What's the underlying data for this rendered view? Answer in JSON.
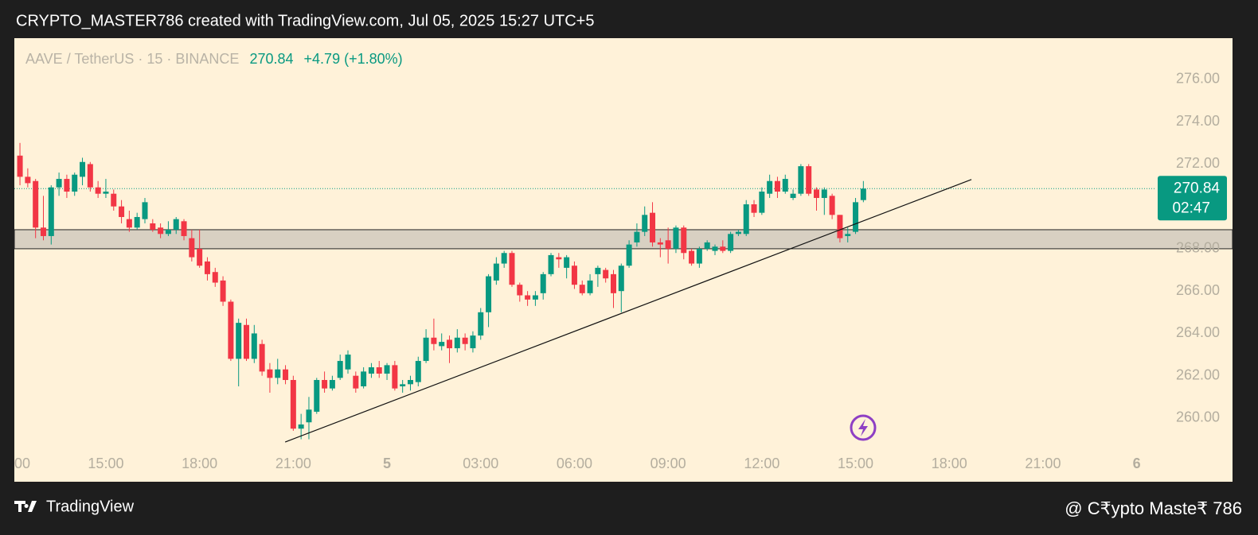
{
  "header": {
    "text": "CRYPTO_MASTER786 created with TradingView.com, Jul 05, 2025 15:27 UTC+5"
  },
  "chart_data": {
    "type": "candlestick",
    "symbol": "AAVE / TetherUS · 15 · BINANCE",
    "last": 270.84,
    "change": "+4.79 (+1.80%)",
    "countdown": "02:47",
    "up_color": "#089981",
    "down_color": "#f23645",
    "xlim": [
      12.07,
      48.57
    ],
    "ylim": [
      258.42,
      277.95
    ],
    "xticks": [
      {
        "value": 12,
        "label": "00"
      },
      {
        "value": 15,
        "label": "15:00"
      },
      {
        "value": 18,
        "label": "18:00"
      },
      {
        "value": 21,
        "label": "21:00"
      },
      {
        "value": 24,
        "label": "5"
      },
      {
        "value": 27,
        "label": "03:00"
      },
      {
        "value": 30,
        "label": "06:00"
      },
      {
        "value": 33,
        "label": "09:00"
      },
      {
        "value": 36,
        "label": "12:00"
      },
      {
        "value": 39,
        "label": "15:00"
      },
      {
        "value": 42,
        "label": "18:00"
      },
      {
        "value": 45,
        "label": "21:00"
      },
      {
        "value": 48,
        "label": "6"
      }
    ],
    "yticks": [
      {
        "value": 260,
        "label": "260.00"
      },
      {
        "value": 262,
        "label": "262.00"
      },
      {
        "value": 264,
        "label": "264.00"
      },
      {
        "value": 266,
        "label": "266.00"
      },
      {
        "value": 268,
        "label": "268.00"
      },
      {
        "value": 270,
        "label": "270.00"
      },
      {
        "value": 272,
        "label": "272.00"
      },
      {
        "value": 274,
        "label": "274.00"
      },
      {
        "value": 276,
        "label": "276.00"
      }
    ],
    "x": [
      12.25,
      12.5,
      12.75,
      13,
      13.25,
      13.5,
      13.75,
      14,
      14.25,
      14.5,
      14.75,
      15,
      15.25,
      15.5,
      15.75,
      16,
      16.25,
      16.5,
      16.75,
      17,
      17.25,
      17.5,
      17.75,
      18,
      18.25,
      18.5,
      18.75,
      19,
      19.25,
      19.5,
      19.75,
      20,
      20.25,
      20.5,
      20.75,
      21,
      21.25,
      21.5,
      21.75,
      22,
      22.25,
      22.5,
      22.75,
      23,
      23.25,
      23.5,
      23.75,
      24,
      24.25,
      24.5,
      24.75,
      25,
      25.25,
      25.5,
      25.75,
      26,
      26.25,
      26.5,
      26.75,
      27,
      27.25,
      27.5,
      27.75,
      28,
      28.25,
      28.5,
      28.75,
      29,
      29.25,
      29.5,
      29.75,
      30,
      30.25,
      30.5,
      30.75,
      31,
      31.25,
      31.5,
      31.75,
      32,
      32.25,
      32.5,
      32.75,
      33,
      33.25,
      33.5,
      33.75,
      34,
      34.25,
      34.5,
      34.75,
      35,
      35.25,
      35.5,
      35.75,
      36,
      36.25,
      36.5,
      36.75,
      37,
      37.25,
      37.5,
      37.75,
      38,
      38.25,
      38.5,
      38.75,
      39,
      39.25
    ],
    "series": [
      {
        "open": [
          272.4,
          271.4,
          271.2,
          269.0,
          268.6,
          270.9,
          271.3,
          270.7,
          271.4,
          272.0,
          270.9,
          270.6,
          270.6,
          270.0,
          269.4,
          269.0,
          269.4,
          269.2,
          269.0,
          268.7,
          268.9,
          269.3,
          268.5,
          268.0,
          267.4,
          266.9,
          266.5,
          265.5,
          262.8,
          264.4,
          262.8,
          263.5,
          262.3,
          261.9,
          262.3,
          261.8,
          259.5,
          259.8,
          260.3,
          261.8,
          261.4,
          261.9,
          262.3,
          262.0,
          261.5,
          262.1,
          262.4,
          262.1,
          262.5,
          261.5,
          261.6,
          261.7,
          262.7,
          263.8,
          263.4,
          263.7,
          263.3,
          263.8,
          263.3,
          263.9,
          265.0,
          266.5,
          267.3,
          267.8,
          266.3,
          265.8,
          265.6,
          265.9,
          266.8,
          267.6,
          267.1,
          267.2,
          266.3,
          265.9,
          266.8,
          267.0,
          266.8,
          266.0,
          267.2,
          268.3,
          268.8,
          269.7,
          268.3,
          268.4,
          268.0,
          269.0,
          267.9,
          267.3,
          268.0,
          267.9,
          268.1,
          267.9,
          268.7,
          268.7,
          270.1,
          269.7,
          270.6,
          271.2,
          270.7,
          270.4,
          270.6,
          271.9,
          270.8,
          270.4,
          270.5,
          269.6,
          268.6,
          268.8,
          270.3
        ],
        "high": [
          273.0,
          271.8,
          271.3,
          270.5,
          271.0,
          271.6,
          271.5,
          271.6,
          272.3,
          272.1,
          271.2,
          271.3,
          270.8,
          270.3,
          269.8,
          269.7,
          270.4,
          269.4,
          269.2,
          269.3,
          269.5,
          269.4,
          268.9,
          268.9,
          267.6,
          267.1,
          266.7,
          265.6,
          264.7,
          264.7,
          264.4,
          263.7,
          262.6,
          262.8,
          262.5,
          262.0,
          260.2,
          261.0,
          261.9,
          262.2,
          262.0,
          263.0,
          263.2,
          262.2,
          262.4,
          262.6,
          262.7,
          262.6,
          262.7,
          261.8,
          262.0,
          262.9,
          264.2,
          264.7,
          264.0,
          263.9,
          264.2,
          264.0,
          264.1,
          265.2,
          266.8,
          267.6,
          267.9,
          267.9,
          266.4,
          266.0,
          266.0,
          266.9,
          267.8,
          267.8,
          267.7,
          267.4,
          266.5,
          266.8,
          267.2,
          267.1,
          267.0,
          267.3,
          268.4,
          269.2,
          270.0,
          270.2,
          268.5,
          269.0,
          269.1,
          269.1,
          268.0,
          268.1,
          268.4,
          268.2,
          268.4,
          268.8,
          268.9,
          270.3,
          270.3,
          270.9,
          271.5,
          271.4,
          271.5,
          270.8,
          272.0,
          272.0,
          270.9,
          270.9,
          270.6,
          269.6,
          269.0,
          270.4,
          271.2
        ],
        "low": [
          271.0,
          270.9,
          268.5,
          268.4,
          268.2,
          270.5,
          270.4,
          270.5,
          271.0,
          270.7,
          270.4,
          270.4,
          269.8,
          269.2,
          268.8,
          268.9,
          269.2,
          268.8,
          268.5,
          268.6,
          268.7,
          268.4,
          267.4,
          267.1,
          266.5,
          266.2,
          265.3,
          262.7,
          261.5,
          262.7,
          262.6,
          262.0,
          261.2,
          261.6,
          261.6,
          259.4,
          259.0,
          259.0,
          260.2,
          261.2,
          261.3,
          261.8,
          262.1,
          261.2,
          261.4,
          261.9,
          261.9,
          261.8,
          261.3,
          261.2,
          261.3,
          261.5,
          262.6,
          263.2,
          263.2,
          262.6,
          263.1,
          263.2,
          263.1,
          263.7,
          264.3,
          266.3,
          267.1,
          266.2,
          265.5,
          265.3,
          265.3,
          265.6,
          266.7,
          267.1,
          266.6,
          266.1,
          265.8,
          265.8,
          266.2,
          266.4,
          265.2,
          265.0,
          267.1,
          268.1,
          268.6,
          268.1,
          267.6,
          267.3,
          267.8,
          267.5,
          267.2,
          267.1,
          267.9,
          267.7,
          267.8,
          267.8,
          268.6,
          268.6,
          269.5,
          269.6,
          270.4,
          270.4,
          270.6,
          270.3,
          270.5,
          270.5,
          269.8,
          269.6,
          269.4,
          268.3,
          268.3,
          268.7,
          270.2
        ],
        "close": [
          271.4,
          271.1,
          269.0,
          268.6,
          270.9,
          271.3,
          270.7,
          271.5,
          272.1,
          270.9,
          270.6,
          270.7,
          270.0,
          269.5,
          269.0,
          269.5,
          270.2,
          268.9,
          268.7,
          268.9,
          269.4,
          268.6,
          267.6,
          267.2,
          266.8,
          266.4,
          265.5,
          262.8,
          264.5,
          262.8,
          264.0,
          262.2,
          261.9,
          262.3,
          261.8,
          259.5,
          259.7,
          260.4,
          261.8,
          261.4,
          261.8,
          262.7,
          263.0,
          261.4,
          262.2,
          262.4,
          262.1,
          262.5,
          261.4,
          261.6,
          261.8,
          262.7,
          263.8,
          263.5,
          263.6,
          263.3,
          263.8,
          263.5,
          263.9,
          265.0,
          266.7,
          267.3,
          267.8,
          266.3,
          265.8,
          265.6,
          265.8,
          266.8,
          267.7,
          267.5,
          267.6,
          266.3,
          265.9,
          266.5,
          267.1,
          266.6,
          265.9,
          267.2,
          268.2,
          268.8,
          269.6,
          268.3,
          268.2,
          268.0,
          269.0,
          267.8,
          267.3,
          268.0,
          268.3,
          268.1,
          267.9,
          268.7,
          268.8,
          270.1,
          269.7,
          270.7,
          271.2,
          270.7,
          271.3,
          270.6,
          271.9,
          270.6,
          270.4,
          270.8,
          269.6,
          268.5,
          268.7,
          270.2,
          270.84
        ]
      }
    ],
    "zones": [
      {
        "low": 268.0,
        "high": 268.9
      }
    ],
    "trendlines": [
      {
        "x": [
          20.74,
          42.71
        ],
        "y": [
          258.87,
          271.27
        ]
      }
    ]
  },
  "footer": {
    "brand": "TradingView",
    "credit": "@ C₹ypto Maste₹ 786"
  }
}
